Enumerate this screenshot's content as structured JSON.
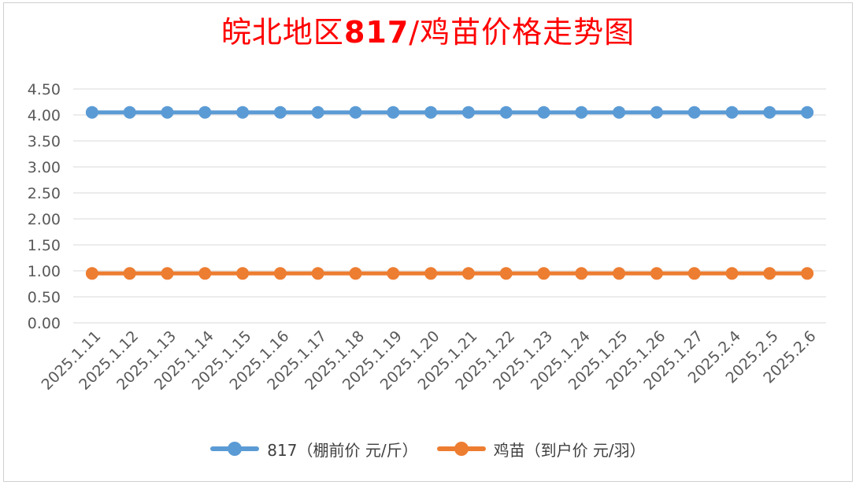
{
  "chart_data": {
    "type": "line",
    "title_main": "皖北地区",
    "title_code": "817",
    "title_rest": "/鸡苗价格走势图",
    "title_color": "#ff0000",
    "categories": [
      "2025.1.11",
      "2025.1.12",
      "2025.1.13",
      "2025.1.14",
      "2025.1.15",
      "2025.1.16",
      "2025.1.17",
      "2025.1.18",
      "2025.1.19",
      "2025.1.20",
      "2025.1.21",
      "2025.1.22",
      "2025.1.23",
      "2025.1.24",
      "2025.1.25",
      "2025.1.26",
      "2025.1.27",
      "2025.2.4",
      "2025.2.5",
      "2025.2.6"
    ],
    "series": [
      {
        "name": "817（棚前价 元/斤）",
        "color": "#5b9bd5",
        "values": [
          4.05,
          4.05,
          4.05,
          4.05,
          4.05,
          4.05,
          4.05,
          4.05,
          4.05,
          4.05,
          4.05,
          4.05,
          4.05,
          4.05,
          4.05,
          4.05,
          4.05,
          4.05,
          4.05,
          4.05
        ]
      },
      {
        "name": "鸡苗（到户价 元/羽）",
        "color": "#ed7d31",
        "values": [
          0.95,
          0.95,
          0.95,
          0.95,
          0.95,
          0.95,
          0.95,
          0.95,
          0.95,
          0.95,
          0.95,
          0.95,
          0.95,
          0.95,
          0.95,
          0.95,
          0.95,
          0.95,
          0.95,
          0.95
        ]
      }
    ],
    "y_ticks": [
      "0.00",
      "0.50",
      "1.00",
      "1.50",
      "2.00",
      "2.50",
      "3.00",
      "3.50",
      "4.00",
      "4.50"
    ],
    "ylim": [
      0,
      4.5
    ],
    "grid": true,
    "legend_position": "bottom"
  }
}
